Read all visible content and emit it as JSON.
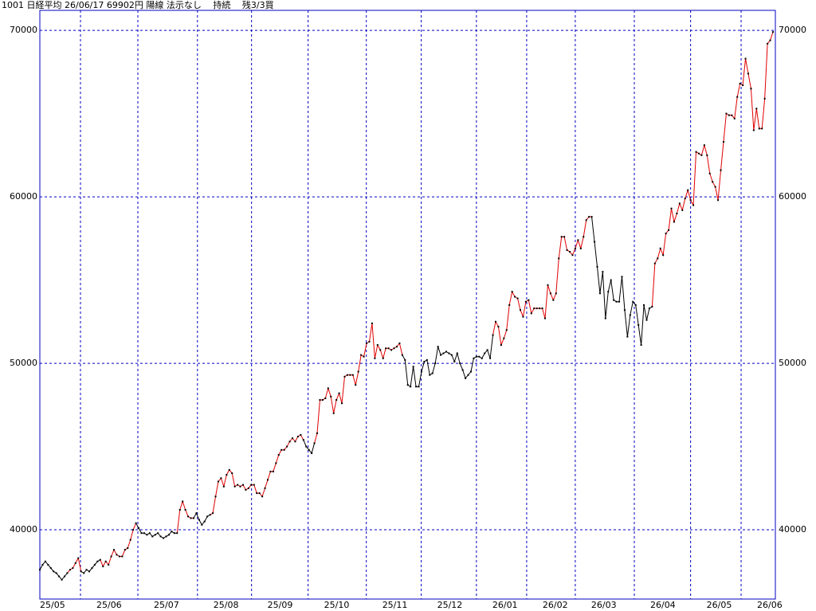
{
  "chart_data": {
    "type": "line",
    "title": "1001 日経平均 26/06/17 69902円 陽線 法示なし　 持続　 残3/3買",
    "ylim": [
      35840,
      71200
    ],
    "yticks": [
      40000,
      50000,
      60000,
      70000
    ],
    "xlim": [
      0,
      267
    ],
    "xticks": [
      {
        "value": 0,
        "label": "25/05"
      },
      {
        "value": 14.8,
        "label": "25/06"
      },
      {
        "value": 35.7,
        "label": "25/07"
      },
      {
        "value": 57.4,
        "label": "25/08"
      },
      {
        "value": 77.1,
        "label": "25/09"
      },
      {
        "value": 97.7,
        "label": "25/10"
      },
      {
        "value": 118.9,
        "label": "25/11"
      },
      {
        "value": 138.9,
        "label": "25/12"
      },
      {
        "value": 159,
        "label": "26/01"
      },
      {
        "value": 177.3,
        "label": "26/02"
      },
      {
        "value": 195,
        "label": "26/03"
      },
      {
        "value": 216.5,
        "label": "26/04"
      },
      {
        "value": 237,
        "label": "26/05"
      },
      {
        "value": 255.4,
        "label": "26/06"
      }
    ],
    "grid": true,
    "axis_color": "#0000c0",
    "marker_color": "#000000",
    "segments": [
      {
        "from": 0,
        "color": "#000000"
      },
      {
        "from": 10,
        "color": "#e00000"
      },
      {
        "from": 15,
        "color": "#000000"
      },
      {
        "from": 22,
        "color": "#e00000"
      },
      {
        "from": 35,
        "color": "#000000"
      },
      {
        "from": 50,
        "color": "#e00000"
      },
      {
        "from": 56,
        "color": "#000000"
      },
      {
        "from": 62,
        "color": "#e00000"
      },
      {
        "from": 96,
        "color": "#000000"
      },
      {
        "from": 100,
        "color": "#e00000"
      },
      {
        "from": 132,
        "color": "#000000"
      },
      {
        "from": 165,
        "color": "#e00000"
      },
      {
        "from": 201,
        "color": "#000000"
      },
      {
        "from": 223,
        "color": "#e00000"
      }
    ],
    "values": [
      37600,
      37900,
      38100,
      37900,
      37700,
      37500,
      37400,
      37200,
      37000,
      37200,
      37400,
      37600,
      37700,
      38000,
      38300,
      37500,
      37400,
      37600,
      37500,
      37700,
      37900,
      38100,
      38200,
      37800,
      38100,
      37900,
      38400,
      38800,
      38500,
      38400,
      38400,
      38800,
      38900,
      39400,
      40000,
      40400,
      40100,
      39800,
      39800,
      39700,
      39800,
      39600,
      39700,
      39800,
      39600,
      39500,
      39600,
      39700,
      39900,
      39800,
      39800,
      41200,
      41700,
      41200,
      40800,
      40700,
      40700,
      41000,
      40600,
      40300,
      40500,
      40800,
      40900,
      41000,
      42000,
      42900,
      43100,
      42600,
      43300,
      43600,
      43400,
      42600,
      42700,
      42600,
      42700,
      42400,
      42500,
      42700,
      42700,
      42200,
      42200,
      42000,
      42500,
      43000,
      43500,
      43500,
      44000,
      44500,
      44800,
      44800,
      45000,
      45300,
      45500,
      45300,
      45600,
      45700,
      45400,
      45000,
      44800,
      44600,
      45200,
      45800,
      47800,
      47800,
      47900,
      48500,
      48000,
      47000,
      47800,
      48200,
      47600,
      49200,
      49300,
      49300,
      49300,
      48700,
      49500,
      50500,
      50400,
      51200,
      51300,
      52400,
      50300,
      51100,
      50800,
      50300,
      50900,
      50900,
      50800,
      50900,
      51000,
      51200,
      50500,
      50200,
      48700,
      48600,
      49800,
      48600,
      48600,
      49500,
      50100,
      50200,
      49300,
      49400,
      50000,
      51000,
      50500,
      50600,
      50700,
      50600,
      50500,
      50100,
      50600,
      50000,
      49600,
      49100,
      49300,
      49500,
      50300,
      50400,
      50400,
      50300,
      50600,
      50800,
      50300,
      51700,
      52500,
      52200,
      51100,
      51500,
      52000,
      53500,
      54300,
      54000,
      53900,
      53200,
      52800,
      53700,
      53800,
      53000,
      53300,
      53300,
      53300,
      53300,
      52700,
      54700,
      54200,
      53800,
      54200,
      56300,
      57600,
      57600,
      56800,
      56700,
      56500,
      56900,
      57400,
      56900,
      57600,
      58600,
      58800,
      58800,
      57300,
      55800,
      54200,
      55500,
      52700,
      54300,
      55000,
      53800,
      53700,
      53700,
      55200,
      53200,
      51600,
      52900,
      53700,
      53500,
      52300,
      51100,
      53500,
      52600,
      53300,
      53400,
      56000,
      56300,
      56900,
      56500,
      57800,
      58000,
      59300,
      58500,
      59000,
      59600,
      59200,
      59900,
      60400,
      59800,
      59500,
      62700,
      62600,
      62500,
      63100,
      62500,
      61400,
      60900,
      60600,
      59800,
      61600,
      63300,
      65000,
      64900,
      64900,
      64700,
      66000,
      66800,
      66700,
      68300,
      67400,
      66500,
      64000,
      65300,
      64100,
      64100,
      65900,
      69200,
      69400,
      69900
    ]
  }
}
